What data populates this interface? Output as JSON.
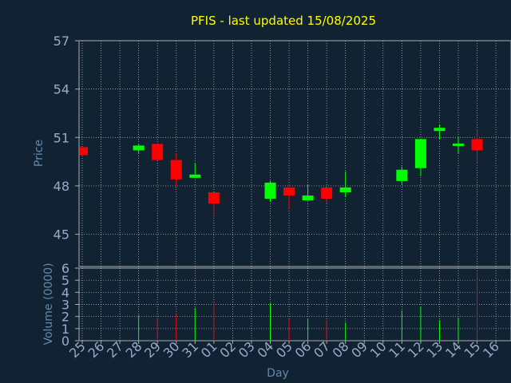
{
  "chart_data": {
    "type": "candlestick",
    "title": "PFIS - last updated 15/08/2025",
    "xlabel": "Day",
    "price_panel": {
      "ylabel": "Price",
      "ylim": [
        43,
        57
      ],
      "yticks": [
        45,
        48,
        51,
        54,
        57
      ]
    },
    "volume_panel": {
      "ylabel": "Volume (0000)",
      "ylim": [
        0,
        6
      ],
      "yticks": [
        0,
        1,
        2,
        3,
        4,
        5,
        6
      ]
    },
    "x_tick_labels": [
      "25",
      "26",
      "27",
      "28",
      "29",
      "30",
      "31",
      "01",
      "02",
      "03",
      "04",
      "05",
      "06",
      "07",
      "08",
      "09",
      "10",
      "11",
      "12",
      "13",
      "14",
      "15",
      "16"
    ],
    "candles": [
      {
        "day": "25",
        "open": 50.4,
        "high": 50.4,
        "low": 49.9,
        "close": 49.9,
        "volume": 0.0
      },
      {
        "day": "28",
        "open": 50.2,
        "high": 50.6,
        "low": 50.0,
        "close": 50.5,
        "volume": 2.1
      },
      {
        "day": "29",
        "open": 50.6,
        "high": 50.6,
        "low": 49.6,
        "close": 49.6,
        "volume": 1.9
      },
      {
        "day": "30",
        "open": 49.6,
        "high": 50.0,
        "low": 48.0,
        "close": 48.4,
        "volume": 2.2
      },
      {
        "day": "31",
        "open": 48.5,
        "high": 49.4,
        "low": 48.5,
        "close": 48.7,
        "volume": 2.7
      },
      {
        "day": "01",
        "open": 47.6,
        "high": 47.6,
        "low": 46.2,
        "close": 46.9,
        "volume": 3.2
      },
      {
        "day": "04",
        "open": 47.2,
        "high": 48.3,
        "low": 47.0,
        "close": 48.2,
        "volume": 3.1
      },
      {
        "day": "05",
        "open": 47.9,
        "high": 48.1,
        "low": 46.6,
        "close": 47.4,
        "volume": 1.8
      },
      {
        "day": "06",
        "open": 47.1,
        "high": 48.1,
        "low": 47.1,
        "close": 47.4,
        "volume": 1.8
      },
      {
        "day": "07",
        "open": 47.9,
        "high": 47.9,
        "low": 46.9,
        "close": 47.2,
        "volume": 1.7
      },
      {
        "day": "08",
        "open": 47.6,
        "high": 48.9,
        "low": 47.3,
        "close": 47.9,
        "volume": 1.5
      },
      {
        "day": "11",
        "open": 48.3,
        "high": 49.2,
        "low": 48.1,
        "close": 49.0,
        "volume": 2.5
      },
      {
        "day": "12",
        "open": 49.1,
        "high": 50.9,
        "low": 48.6,
        "close": 50.9,
        "volume": 2.8
      },
      {
        "day": "13",
        "open": 51.4,
        "high": 51.8,
        "low": 50.9,
        "close": 51.6,
        "volume": 1.7
      },
      {
        "day": "14",
        "open": 50.5,
        "high": 51.0,
        "low": 50.0,
        "close": 50.6,
        "volume": 1.9
      },
      {
        "day": "15",
        "open": 50.9,
        "high": 51.5,
        "low": 49.4,
        "close": 50.2,
        "volume": 5.6
      }
    ],
    "grid": true
  },
  "colors": {
    "background": "#112233",
    "axis": "#aaaaaa",
    "grid": "#ffffff",
    "title": "#ffff00",
    "label": "#6688aa",
    "tick_label": "#99aacc",
    "up": "#00ff00",
    "down": "#ff0000"
  }
}
